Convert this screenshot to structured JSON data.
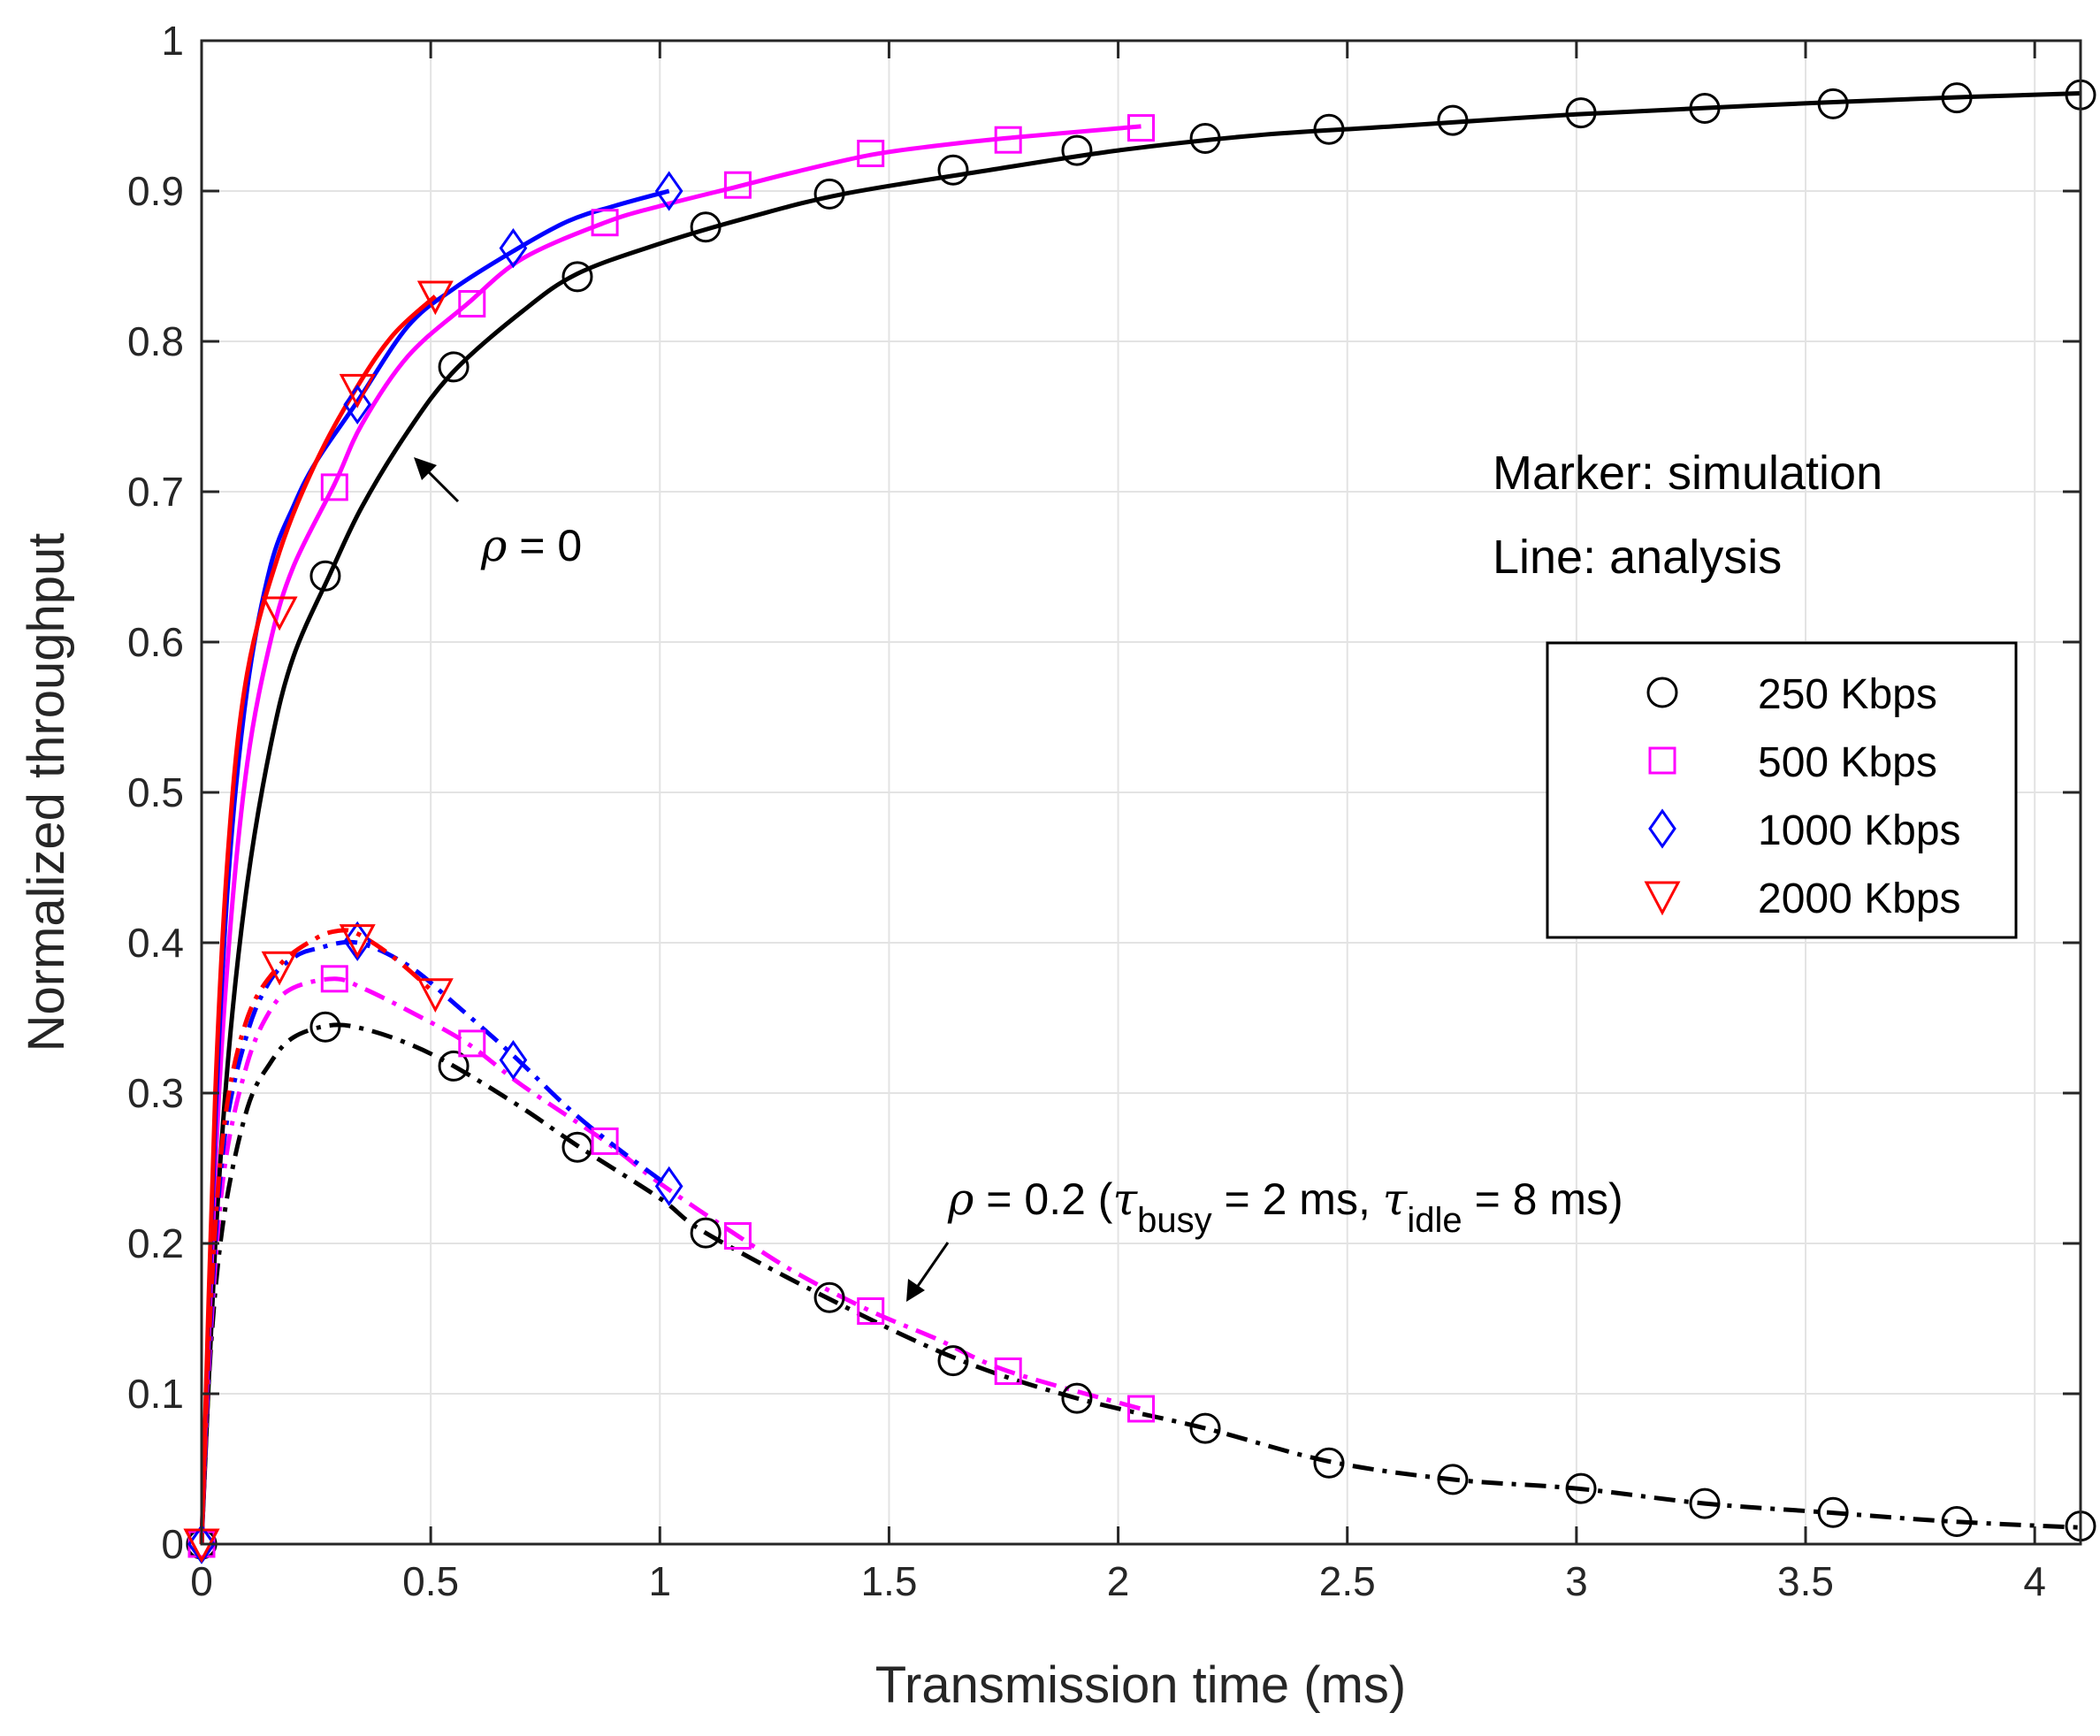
{
  "chart_data": {
    "type": "line",
    "xlabel": "Transmission time (ms)",
    "ylabel": "Normalized throughput",
    "xlim": [
      0,
      4.1
    ],
    "ylim": [
      0,
      1
    ],
    "xticks": [
      "0",
      "0.5",
      "1",
      "1.5",
      "2",
      "2.5",
      "3",
      "3.5",
      "4"
    ],
    "yticks": [
      "0",
      "0.1",
      "0.2",
      "0.3",
      "0.4",
      "0.5",
      "0.6",
      "0.7",
      "0.8",
      "0.9",
      "1"
    ],
    "grid": true,
    "legend_position": "right",
    "annotations": {
      "marker_note": "Marker: simulation",
      "line_note": "Line: analysis",
      "rho0": {
        "sym": "ρ",
        "eq": " = 0"
      },
      "rho02": {
        "sym": "ρ",
        "eq": " = 0.2  (",
        "tau1": "τ",
        "sub1": "busy",
        "mid": " = 2 ms, ",
        "tau2": "τ",
        "sub2": "idle",
        "end": " = 8 ms)"
      }
    },
    "series": [
      {
        "name": "250 Kbps",
        "color": "#000000",
        "marker": "circle",
        "analysis_rho0_x": [
          0,
          0.03,
          0.06,
          0.1,
          0.15,
          0.2,
          0.28,
          0.35,
          0.45,
          0.55,
          0.7,
          0.82,
          1.0,
          1.2,
          1.4,
          1.7,
          2.0,
          2.3,
          2.6,
          3.0,
          3.4,
          3.8,
          4.1
        ],
        "analysis_rho0_y": [
          0,
          0.2,
          0.33,
          0.44,
          0.53,
          0.59,
          0.645,
          0.69,
          0.74,
          0.78,
          0.82,
          0.845,
          0.865,
          0.883,
          0.898,
          0.913,
          0.927,
          0.937,
          0.943,
          0.951,
          0.957,
          0.962,
          0.965
        ],
        "analysis_rho02_x": [
          0,
          0.02,
          0.05,
          0.1,
          0.15,
          0.2,
          0.28,
          0.35,
          0.45,
          0.55,
          0.7,
          0.82,
          1.0,
          1.1,
          1.37,
          1.65,
          1.91,
          2.19,
          2.46,
          2.73,
          3.0,
          3.28,
          3.55,
          3.82,
          4.1
        ],
        "analysis_rho02_y": [
          0,
          0.13,
          0.22,
          0.29,
          0.32,
          0.337,
          0.345,
          0.343,
          0.333,
          0.318,
          0.29,
          0.265,
          0.23,
          0.207,
          0.163,
          0.123,
          0.097,
          0.077,
          0.055,
          0.043,
          0.037,
          0.027,
          0.021,
          0.015,
          0.011
        ],
        "sim_rho0_x": [
          0,
          0.27,
          0.55,
          0.82,
          1.1,
          1.37,
          1.64,
          1.91,
          2.19,
          2.46,
          2.73,
          3.01,
          3.28,
          3.56,
          3.83,
          4.1
        ],
        "sim_rho0_y": [
          0,
          0.644,
          0.783,
          0.843,
          0.876,
          0.898,
          0.914,
          0.927,
          0.935,
          0.941,
          0.947,
          0.952,
          0.955,
          0.958,
          0.962,
          0.964
        ],
        "sim_rho02_x": [
          0,
          0.27,
          0.55,
          0.82,
          1.1,
          1.37,
          1.64,
          1.91,
          2.19,
          2.46,
          2.73,
          3.01,
          3.28,
          3.56,
          3.83,
          4.1
        ],
        "sim_rho02_y": [
          0,
          0.344,
          0.318,
          0.264,
          0.207,
          0.164,
          0.122,
          0.097,
          0.077,
          0.054,
          0.043,
          0.037,
          0.027,
          0.021,
          0.015,
          0.012
        ]
      },
      {
        "name": "500 Kbps",
        "color": "#ff00ff",
        "marker": "square",
        "analysis_rho0_x": [
          0,
          0.03,
          0.06,
          0.1,
          0.15,
          0.2,
          0.29,
          0.35,
          0.45,
          0.58,
          0.7,
          0.88,
          1.0,
          1.17,
          1.3,
          1.46,
          1.6,
          1.75,
          2.05
        ],
        "analysis_rho0_y": [
          0,
          0.25,
          0.4,
          0.52,
          0.6,
          0.65,
          0.705,
          0.745,
          0.79,
          0.825,
          0.855,
          0.879,
          0.89,
          0.903,
          0.913,
          0.924,
          0.93,
          0.935,
          0.943
        ],
        "analysis_rho02_x": [
          0,
          0.02,
          0.05,
          0.1,
          0.15,
          0.2,
          0.29,
          0.35,
          0.45,
          0.58,
          0.7,
          0.88,
          1.0,
          1.17,
          1.3,
          1.46,
          1.6,
          1.76,
          2.05
        ],
        "analysis_rho02_y": [
          0,
          0.14,
          0.25,
          0.32,
          0.355,
          0.37,
          0.376,
          0.37,
          0.355,
          0.333,
          0.305,
          0.268,
          0.24,
          0.205,
          0.18,
          0.155,
          0.137,
          0.115,
          0.09
        ],
        "sim_rho0_x": [
          0,
          0.29,
          0.59,
          0.88,
          1.17,
          1.46,
          1.76,
          2.05
        ],
        "sim_rho0_y": [
          0,
          0.703,
          0.825,
          0.879,
          0.904,
          0.925,
          0.934,
          0.942
        ],
        "sim_rho02_x": [
          0,
          0.29,
          0.59,
          0.88,
          1.17,
          1.46,
          1.76,
          2.05
        ],
        "sim_rho02_y": [
          0,
          0.376,
          0.333,
          0.268,
          0.205,
          0.155,
          0.115,
          0.09
        ]
      },
      {
        "name": "1000 Kbps",
        "color": "#0000ff",
        "marker": "diamond",
        "analysis_rho0_x": [
          0,
          0.03,
          0.06,
          0.1,
          0.15,
          0.2,
          0.25,
          0.34,
          0.45,
          0.55,
          0.68,
          0.8,
          0.9,
          1.02
        ],
        "analysis_rho0_y": [
          0,
          0.28,
          0.45,
          0.57,
          0.65,
          0.69,
          0.72,
          0.76,
          0.81,
          0.835,
          0.86,
          0.88,
          0.89,
          0.9
        ],
        "analysis_rho02_x": [
          0,
          0.02,
          0.05,
          0.1,
          0.15,
          0.2,
          0.25,
          0.34,
          0.45,
          0.55,
          0.68,
          0.8,
          0.9,
          1.02
        ],
        "analysis_rho02_y": [
          0,
          0.15,
          0.27,
          0.34,
          0.375,
          0.39,
          0.396,
          0.4,
          0.385,
          0.36,
          0.325,
          0.29,
          0.265,
          0.238
        ],
        "sim_rho0_x": [
          0,
          0.34,
          0.68,
          1.02
        ],
        "sim_rho0_y": [
          0,
          0.758,
          0.862,
          0.9
        ],
        "sim_rho02_x": [
          0,
          0.34,
          0.68,
          1.02
        ],
        "sim_rho02_y": [
          0,
          0.401,
          0.322,
          0.238
        ]
      },
      {
        "name": "2000 Kbps",
        "color": "#ff0000",
        "marker": "triangle-down",
        "analysis_rho0_x": [
          0,
          0.03,
          0.06,
          0.1,
          0.17,
          0.25,
          0.34,
          0.42,
          0.51
        ],
        "analysis_rho0_y": [
          0,
          0.3,
          0.47,
          0.58,
          0.66,
          0.72,
          0.77,
          0.805,
          0.83
        ],
        "analysis_rho02_x": [
          0,
          0.02,
          0.05,
          0.1,
          0.17,
          0.25,
          0.3,
          0.34,
          0.42,
          0.51
        ],
        "analysis_rho02_y": [
          0,
          0.16,
          0.28,
          0.35,
          0.385,
          0.403,
          0.408,
          0.406,
          0.39,
          0.366
        ],
        "sim_rho0_x": [
          0,
          0.17,
          0.34,
          0.51
        ],
        "sim_rho0_y": [
          0,
          0.62,
          0.768,
          0.83
        ],
        "sim_rho02_x": [
          0,
          0.17,
          0.34,
          0.51
        ],
        "sim_rho02_y": [
          0,
          0.384,
          0.402,
          0.366
        ]
      }
    ]
  }
}
